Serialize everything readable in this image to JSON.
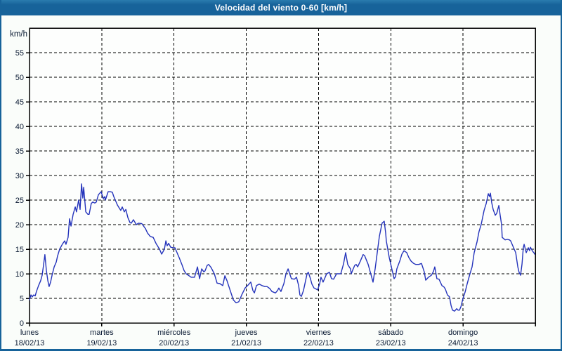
{
  "window": {
    "title": "Velocidad del viento 0-60 [km/h]"
  },
  "colors": {
    "titlebar_bg": "#17639a",
    "titlebar_text": "#ffffff",
    "page_bg": "#fafdfa",
    "page_border": "#17639a",
    "plot_bg": "#fdfefd",
    "grid": "#000000",
    "frame": "#000000",
    "label_text": "#0a1a33",
    "line": "#2433bb"
  },
  "chart_data": {
    "type": "line",
    "title": "Velocidad del viento 0-60 [km/h]",
    "ylabel": "km/h",
    "xlabel": "",
    "ylim": [
      0,
      60
    ],
    "y_ticks": [
      0,
      5,
      10,
      15,
      20,
      25,
      30,
      35,
      40,
      45,
      50,
      55
    ],
    "x_range_hours": [
      0,
      168
    ],
    "grid": "dashed",
    "legend_position": "none",
    "x_days": [
      {
        "name": "lunes",
        "date": "18/02/13"
      },
      {
        "name": "martes",
        "date": "19/02/13"
      },
      {
        "name": "miércoles",
        "date": "20/02/13"
      },
      {
        "name": "jueves",
        "date": "21/02/13"
      },
      {
        "name": "viernes",
        "date": "22/02/13"
      },
      {
        "name": "sábado",
        "date": "23/02/13"
      },
      {
        "name": "domingo",
        "date": "24/02/13"
      }
    ],
    "series": [
      {
        "name": "Velocidad del viento",
        "unit": "km/h",
        "points": [
          [
            0.0,
            4.7
          ],
          [
            0.5,
            5.7
          ],
          [
            0.9,
            5.3
          ],
          [
            1.4,
            5.7
          ],
          [
            1.9,
            5.5
          ],
          [
            2.3,
            6.4
          ],
          [
            3.0,
            7.6
          ],
          [
            3.7,
            8.6
          ],
          [
            4.2,
            9.7
          ],
          [
            4.7,
            11.9
          ],
          [
            5.1,
            13.9
          ],
          [
            5.6,
            10.7
          ],
          [
            6.1,
            8.6
          ],
          [
            6.5,
            7.4
          ],
          [
            7.0,
            8.3
          ],
          [
            7.5,
            9.7
          ],
          [
            8.2,
            11.4
          ],
          [
            8.9,
            12.4
          ],
          [
            9.3,
            13.6
          ],
          [
            10.0,
            15.0
          ],
          [
            11.0,
            16.1
          ],
          [
            11.7,
            16.7
          ],
          [
            12.1,
            16.0
          ],
          [
            12.8,
            17.4
          ],
          [
            13.3,
            21.2
          ],
          [
            13.8,
            19.7
          ],
          [
            14.5,
            22.1
          ],
          [
            15.2,
            23.6
          ],
          [
            15.6,
            22.6
          ],
          [
            16.3,
            25.0
          ],
          [
            16.8,
            23.1
          ],
          [
            17.3,
            28.3
          ],
          [
            17.7,
            25.4
          ],
          [
            18.0,
            27.6
          ],
          [
            18.7,
            22.6
          ],
          [
            19.4,
            22.1
          ],
          [
            19.8,
            22.1
          ],
          [
            20.5,
            24.3
          ],
          [
            21.0,
            24.6
          ],
          [
            21.7,
            24.4
          ],
          [
            22.2,
            24.6
          ],
          [
            22.9,
            26.1
          ],
          [
            23.8,
            26.7
          ],
          [
            24.5,
            25.3
          ],
          [
            25.0,
            25.7
          ],
          [
            25.2,
            25.0
          ],
          [
            26.1,
            26.7
          ],
          [
            26.8,
            26.7
          ],
          [
            27.5,
            26.6
          ],
          [
            28.0,
            25.7
          ],
          [
            28.5,
            25.0
          ],
          [
            29.2,
            24.0
          ],
          [
            29.9,
            23.3
          ],
          [
            30.3,
            22.9
          ],
          [
            30.8,
            23.6
          ],
          [
            31.5,
            22.6
          ],
          [
            32.0,
            23.1
          ],
          [
            32.7,
            21.4
          ],
          [
            33.4,
            20.4
          ],
          [
            33.8,
            20.3
          ],
          [
            34.5,
            21.0
          ],
          [
            35.5,
            20.0
          ],
          [
            36.2,
            20.3
          ],
          [
            37.3,
            20.2
          ],
          [
            38.5,
            19.2
          ],
          [
            39.2,
            18.3
          ],
          [
            40.1,
            17.6
          ],
          [
            41.1,
            17.4
          ],
          [
            42.0,
            16.2
          ],
          [
            43.2,
            15.0
          ],
          [
            43.9,
            14.0
          ],
          [
            44.8,
            15.0
          ],
          [
            45.3,
            16.7
          ],
          [
            45.7,
            15.7
          ],
          [
            46.2,
            16.2
          ],
          [
            46.9,
            15.4
          ],
          [
            47.8,
            15.3
          ],
          [
            48.3,
            15.3
          ],
          [
            49.0,
            14.3
          ],
          [
            49.7,
            13.3
          ],
          [
            50.6,
            11.9
          ],
          [
            51.3,
            10.7
          ],
          [
            52.0,
            10.0
          ],
          [
            53.0,
            9.6
          ],
          [
            53.7,
            9.3
          ],
          [
            54.8,
            9.3
          ],
          [
            55.8,
            11.4
          ],
          [
            56.5,
            9.0
          ],
          [
            57.2,
            11.0
          ],
          [
            57.9,
            10.4
          ],
          [
            58.3,
            10.6
          ],
          [
            59.0,
            11.7
          ],
          [
            59.5,
            11.9
          ],
          [
            60.3,
            11.3
          ],
          [
            61.4,
            10.0
          ],
          [
            62.3,
            8.1
          ],
          [
            63.2,
            8.0
          ],
          [
            64.2,
            7.6
          ],
          [
            64.9,
            9.6
          ],
          [
            65.6,
            8.6
          ],
          [
            66.5,
            6.9
          ],
          [
            67.7,
            4.7
          ],
          [
            68.6,
            4.1
          ],
          [
            69.5,
            4.3
          ],
          [
            70.5,
            5.7
          ],
          [
            71.6,
            7.1
          ],
          [
            72.6,
            7.7
          ],
          [
            73.5,
            8.3
          ],
          [
            74.2,
            6.6
          ],
          [
            74.7,
            6.1
          ],
          [
            75.4,
            7.6
          ],
          [
            76.3,
            7.9
          ],
          [
            77.2,
            7.6
          ],
          [
            78.2,
            7.4
          ],
          [
            78.9,
            7.4
          ],
          [
            79.8,
            7.0
          ],
          [
            80.5,
            6.4
          ],
          [
            81.7,
            6.1
          ],
          [
            82.4,
            6.6
          ],
          [
            82.8,
            7.1
          ],
          [
            83.5,
            6.4
          ],
          [
            84.5,
            8.0
          ],
          [
            85.2,
            10.0
          ],
          [
            85.9,
            11.0
          ],
          [
            86.6,
            9.7
          ],
          [
            87.0,
            9.0
          ],
          [
            88.0,
            8.9
          ],
          [
            88.7,
            9.3
          ],
          [
            89.4,
            7.6
          ],
          [
            89.8,
            5.7
          ],
          [
            90.3,
            5.4
          ],
          [
            91.0,
            6.6
          ],
          [
            91.7,
            8.6
          ],
          [
            92.2,
            10.0
          ],
          [
            92.6,
            10.3
          ],
          [
            93.3,
            9.0
          ],
          [
            93.8,
            7.9
          ],
          [
            94.5,
            7.1
          ],
          [
            95.2,
            6.9
          ],
          [
            95.7,
            6.7
          ],
          [
            96.4,
            8.0
          ],
          [
            96.8,
            9.3
          ],
          [
            97.5,
            8.3
          ],
          [
            98.2,
            9.3
          ],
          [
            98.7,
            10.0
          ],
          [
            99.6,
            10.3
          ],
          [
            100.3,
            9.0
          ],
          [
            101.0,
            8.9
          ],
          [
            102.0,
            10.0
          ],
          [
            103.4,
            10.0
          ],
          [
            104.3,
            12.0
          ],
          [
            105.0,
            14.3
          ],
          [
            105.7,
            11.9
          ],
          [
            106.6,
            11.0
          ],
          [
            106.9,
            10.0
          ],
          [
            107.3,
            10.7
          ],
          [
            108.0,
            11.7
          ],
          [
            108.5,
            11.9
          ],
          [
            109.0,
            11.4
          ],
          [
            109.9,
            12.6
          ],
          [
            110.8,
            13.9
          ],
          [
            111.3,
            13.7
          ],
          [
            112.5,
            11.9
          ],
          [
            113.6,
            9.4
          ],
          [
            114.1,
            8.3
          ],
          [
            114.8,
            11.0
          ],
          [
            115.5,
            14.3
          ],
          [
            116.2,
            17.6
          ],
          [
            117.1,
            20.3
          ],
          [
            117.8,
            20.7
          ],
          [
            118.3,
            18.3
          ],
          [
            118.5,
            16.7
          ],
          [
            119.0,
            15.0
          ],
          [
            119.5,
            13.3
          ],
          [
            120.2,
            11.4
          ],
          [
            120.6,
            10.3
          ],
          [
            121.1,
            9.0
          ],
          [
            121.6,
            9.4
          ],
          [
            122.0,
            11.0
          ],
          [
            123.0,
            12.6
          ],
          [
            123.7,
            14.0
          ],
          [
            124.4,
            14.7
          ],
          [
            125.3,
            14.3
          ],
          [
            126.0,
            13.3
          ],
          [
            126.7,
            12.6
          ],
          [
            127.6,
            12.1
          ],
          [
            128.3,
            11.9
          ],
          [
            129.3,
            11.9
          ],
          [
            130.2,
            12.1
          ],
          [
            131.1,
            10.4
          ],
          [
            131.6,
            8.7
          ],
          [
            132.5,
            9.3
          ],
          [
            133.5,
            9.7
          ],
          [
            134.2,
            10.5
          ],
          [
            134.6,
            11.4
          ],
          [
            135.3,
            9.0
          ],
          [
            136.0,
            8.9
          ],
          [
            137.0,
            7.6
          ],
          [
            137.7,
            7.3
          ],
          [
            138.1,
            6.9
          ],
          [
            138.8,
            5.7
          ],
          [
            139.5,
            5.3
          ],
          [
            140.0,
            3.6
          ],
          [
            140.5,
            2.6
          ],
          [
            141.2,
            2.4
          ],
          [
            141.9,
            2.9
          ],
          [
            142.3,
            2.6
          ],
          [
            142.8,
            2.6
          ],
          [
            143.3,
            3.3
          ],
          [
            144.0,
            5.0
          ],
          [
            144.7,
            6.3
          ],
          [
            145.4,
            8.0
          ],
          [
            146.3,
            10.0
          ],
          [
            147.0,
            11.4
          ],
          [
            147.7,
            14.3
          ],
          [
            148.6,
            16.4
          ],
          [
            149.3,
            18.6
          ],
          [
            150.0,
            20.0
          ],
          [
            151.0,
            22.9
          ],
          [
            151.7,
            24.3
          ],
          [
            152.4,
            26.3
          ],
          [
            152.8,
            25.7
          ],
          [
            153.1,
            26.4
          ],
          [
            153.5,
            24.5
          ],
          [
            154.0,
            23.1
          ],
          [
            154.7,
            21.9
          ],
          [
            155.2,
            22.3
          ],
          [
            155.9,
            23.9
          ],
          [
            156.3,
            22.0
          ],
          [
            156.8,
            20.0
          ],
          [
            157.0,
            17.4
          ],
          [
            158.0,
            16.9
          ],
          [
            158.7,
            17.0
          ],
          [
            159.4,
            16.9
          ],
          [
            159.8,
            16.7
          ],
          [
            160.5,
            15.7
          ],
          [
            161.5,
            14.3
          ],
          [
            162.2,
            11.4
          ],
          [
            162.6,
            10.3
          ],
          [
            163.1,
            9.7
          ],
          [
            163.6,
            12.0
          ],
          [
            164.0,
            15.3
          ],
          [
            164.3,
            16.0
          ],
          [
            165.0,
            14.3
          ],
          [
            165.7,
            15.3
          ],
          [
            166.1,
            14.7
          ],
          [
            166.4,
            15.4
          ],
          [
            167.1,
            14.6
          ],
          [
            167.5,
            14.3
          ],
          [
            167.8,
            14.0
          ]
        ]
      }
    ]
  }
}
